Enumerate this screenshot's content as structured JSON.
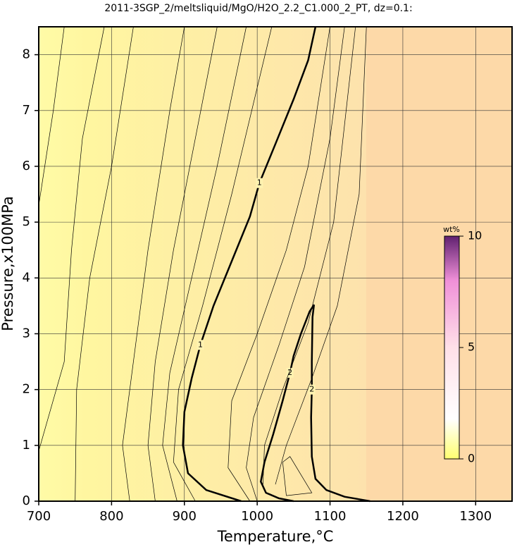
{
  "chart_data": {
    "type": "contour",
    "title": "2011-3SGP_2/meltsliquid/MgO/H2O_2.2_C1.000_2_PT, dz=0.1:",
    "x_label": "Temperature,°C",
    "y_label": "Pressure,x100MPa",
    "xlim": [
      700,
      1350
    ],
    "ylim": [
      0,
      8.5
    ],
    "xticks": [
      700,
      800,
      900,
      1000,
      1100,
      1200,
      1300
    ],
    "yticks": [
      0,
      1,
      2,
      3,
      4,
      5,
      6,
      7,
      8
    ],
    "grid": true,
    "colorbar": {
      "label": "wt%",
      "lim": [
        0,
        10
      ],
      "ticks": [
        0,
        5,
        10
      ]
    },
    "contours": [
      {
        "level": 1,
        "temperature": [
          978,
          930,
          905,
          898,
          900,
          910,
          922,
          940,
          965,
          990,
          1003,
          1025,
          1050,
          1070,
          1080
        ],
        "pressure": [
          0,
          0.2,
          0.5,
          1.0,
          1.6,
          2.2,
          2.8,
          3.5,
          4.3,
          5.1,
          5.7,
          6.4,
          7.2,
          7.9,
          8.5
        ]
      },
      {
        "level": 2,
        "temperature": [
          1155,
          1120,
          1095,
          1080,
          1075,
          1074,
          1075,
          1075,
          1076,
          1078,
          1072,
          1060,
          1050,
          1045,
          1035,
          1022,
          1010,
          1005,
          1012,
          1030,
          1050
        ],
        "pressure": [
          0,
          0.08,
          0.2,
          0.4,
          0.8,
          1.5,
          2.0,
          2.5,
          3.3,
          3.52,
          3.4,
          3.0,
          2.6,
          2.3,
          1.8,
          1.2,
          0.7,
          0.35,
          0.15,
          0.05,
          0
        ]
      },
      {
        "level": 0.2,
        "temperature": [
          700,
          720,
          735
        ],
        "pressure": [
          5.3,
          7.0,
          8.5
        ]
      },
      {
        "level": 0.3,
        "temperature": [
          700,
          735,
          745,
          760,
          790
        ],
        "pressure": [
          0.9,
          2.5,
          4.5,
          6.5,
          8.5
        ]
      },
      {
        "level": 0.4,
        "temperature": [
          750,
          752,
          770,
          800,
          830
        ],
        "pressure": [
          0,
          2.0,
          4.0,
          6.0,
          8.5
        ]
      },
      {
        "level": 0.5,
        "temperature": [
          825,
          815,
          830,
          850,
          880,
          900
        ],
        "pressure": [
          0,
          1.0,
          2.5,
          4.5,
          7.0,
          8.5
        ]
      },
      {
        "level": 0.6,
        "temperature": [
          860,
          850,
          860,
          885,
          915,
          945
        ],
        "pressure": [
          0,
          1.0,
          2.5,
          4.5,
          6.5,
          8.5
        ]
      },
      {
        "level": 0.7,
        "temperature": [
          890,
          870,
          880,
          910,
          945,
          985
        ],
        "pressure": [
          0,
          1.0,
          2.3,
          4.0,
          6.0,
          8.5
        ]
      },
      {
        "level": 0.8,
        "temperature": [
          915,
          885,
          892,
          925,
          965,
          1020
        ],
        "pressure": [
          0,
          0.7,
          2.0,
          3.5,
          5.5,
          8.5
        ]
      },
      {
        "level": 1.2,
        "temperature": [
          990,
          960,
          965,
          1000,
          1040,
          1070,
          1100
        ],
        "pressure": [
          0,
          0.6,
          1.8,
          3.0,
          4.5,
          6.0,
          8.5
        ]
      },
      {
        "level": 1.4,
        "temperature": [
          1000,
          985,
          995,
          1030,
          1065,
          1100,
          1120
        ],
        "pressure": [
          0,
          0.6,
          1.5,
          2.8,
          4.2,
          6.5,
          8.5
        ]
      },
      {
        "level": 1.6,
        "temperature": [
          1008,
          1010,
          1035,
          1070,
          1105,
          1135
        ],
        "pressure": [
          0.3,
          1.0,
          2.0,
          3.2,
          5.0,
          8.5
        ]
      },
      {
        "level": 1.8,
        "temperature": [
          1025,
          1040,
          1075,
          1110,
          1140,
          1150
        ],
        "pressure": [
          0.3,
          1.0,
          2.2,
          3.5,
          5.5,
          8.5
        ]
      },
      {
        "level": 2.5,
        "temperature": [
          1040,
          1035,
          1045,
          1075,
          1040
        ],
        "pressure": [
          0.1,
          0.7,
          0.8,
          0.15,
          0.1
        ]
      }
    ]
  }
}
